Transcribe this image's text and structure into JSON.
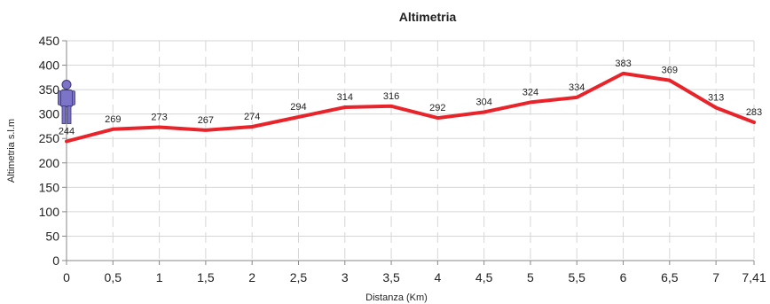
{
  "chart_data": {
    "type": "line",
    "title": "Altimetria",
    "xlabel": "Distanza (Km)",
    "ylabel": "Altimetria s.l.m",
    "ylim": [
      0,
      450
    ],
    "y_ticks": [
      "0",
      "50",
      "100",
      "150",
      "200",
      "250",
      "300",
      "350",
      "400",
      "450"
    ],
    "x_ticks": [
      "0",
      "0,5",
      "1",
      "1,5",
      "2",
      "2,5",
      "3",
      "3,5",
      "4",
      "4,5",
      "5",
      "5,5",
      "6",
      "6,5",
      "7",
      "7,41"
    ],
    "x": [
      0,
      0.5,
      1,
      1.5,
      2,
      2.5,
      3,
      3.5,
      4,
      4.5,
      5,
      5.5,
      6,
      6.5,
      7,
      7.41
    ],
    "series": [
      {
        "values": [
          244,
          269,
          273,
          267,
          274,
          294,
          314,
          316,
          292,
          304,
          324,
          334,
          383,
          369,
          313,
          283
        ],
        "labels": [
          "244",
          "269",
          "273",
          "267",
          "274",
          "294",
          "314",
          "316",
          "292",
          "304",
          "324",
          "334",
          "383",
          "369",
          "313",
          "283"
        ],
        "color": "#e8232a"
      }
    ],
    "grid": true,
    "legend": "none",
    "marker_icon": "hiker-icon"
  }
}
